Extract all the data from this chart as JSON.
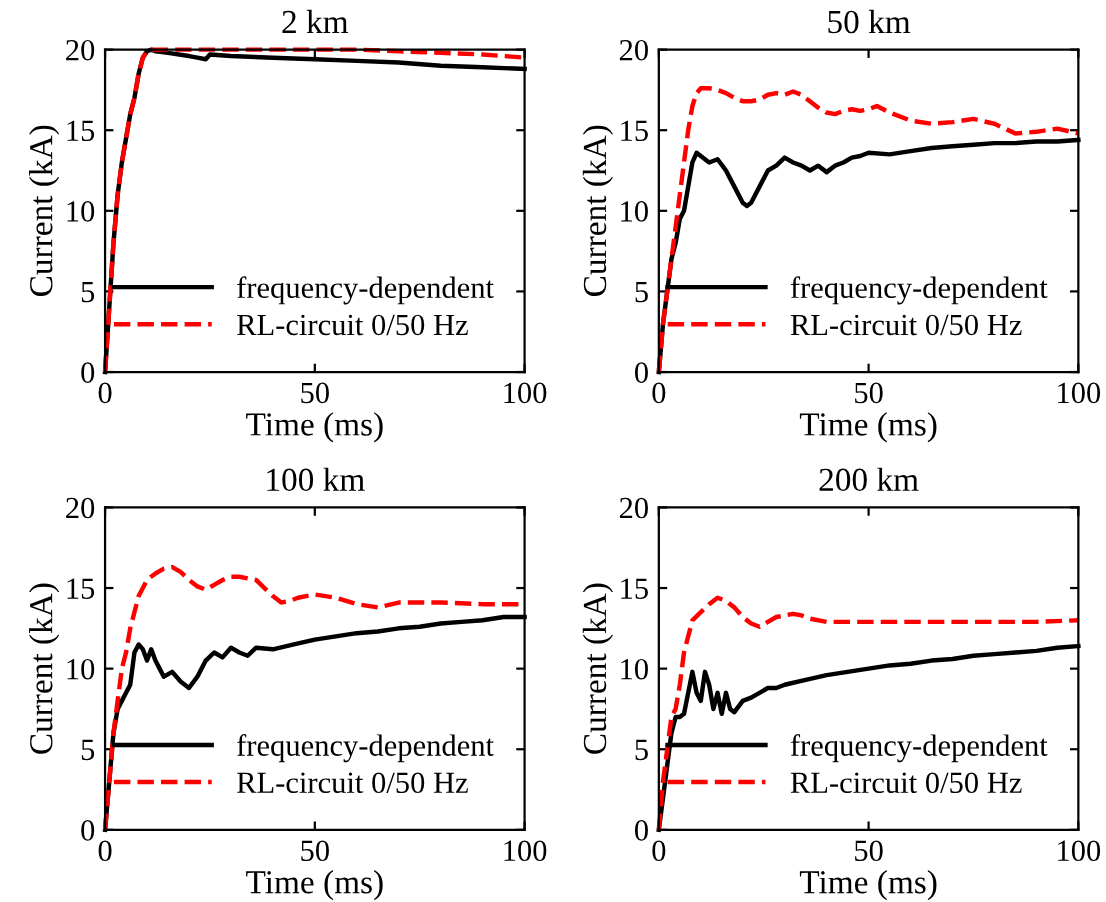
{
  "chart_data": [
    {
      "type": "line",
      "title": "2 km",
      "xlabel": "Time (ms)",
      "ylabel": "Current (kA)",
      "xlim": [
        0,
        100
      ],
      "ylim": [
        0,
        20
      ],
      "xticks": [
        0,
        50,
        100
      ],
      "yticks": [
        0,
        5,
        10,
        15,
        20
      ],
      "grid": false,
      "legend": "bottom right",
      "series": [
        {
          "name": "frequency-dependent",
          "color": "#000000",
          "line_style": "solid",
          "x": [
            0,
            1,
            2,
            3,
            4,
            5,
            6,
            7,
            8,
            9,
            10,
            11,
            12,
            15,
            20,
            22,
            24,
            25,
            30,
            40,
            50,
            60,
            70,
            80,
            90,
            100
          ],
          "values": [
            0,
            4,
            8,
            11,
            13,
            14.5,
            16,
            17,
            18.5,
            19.5,
            19.9,
            20,
            19.9,
            19.8,
            19.6,
            19.5,
            19.4,
            19.7,
            19.6,
            19.5,
            19.4,
            19.3,
            19.2,
            19.0,
            18.9,
            18.8
          ]
        },
        {
          "name": "RL-circuit 0/50 Hz",
          "color": "#ff0000",
          "line_style": "dashed",
          "x": [
            0,
            1,
            2,
            3,
            4,
            5,
            6,
            7,
            8,
            9,
            10,
            11,
            12,
            15,
            20,
            30,
            40,
            50,
            60,
            70,
            80,
            90,
            100
          ],
          "values": [
            0,
            4,
            8,
            11,
            13,
            14.5,
            16,
            17,
            18.5,
            19.5,
            19.9,
            20,
            20,
            20,
            20,
            20,
            20,
            20,
            20,
            19.9,
            19.8,
            19.7,
            19.5
          ]
        }
      ]
    },
    {
      "type": "line",
      "title": "50 km",
      "xlabel": "Time (ms)",
      "ylabel": "Current (kA)",
      "xlim": [
        0,
        100
      ],
      "ylim": [
        0,
        20
      ],
      "xticks": [
        0,
        50,
        100
      ],
      "yticks": [
        0,
        5,
        10,
        15,
        20
      ],
      "grid": false,
      "legend": "bottom right",
      "series": [
        {
          "name": "frequency-dependent",
          "color": "#000000",
          "line_style": "solid",
          "x": [
            0,
            1,
            2,
            3,
            4,
            5,
            6,
            7,
            8,
            9,
            10,
            12,
            14,
            16,
            18,
            20,
            21,
            22,
            24,
            26,
            28,
            30,
            32,
            34,
            36,
            38,
            40,
            42,
            44,
            46,
            48,
            50,
            55,
            60,
            65,
            70,
            75,
            80,
            85,
            90,
            95,
            100
          ],
          "values": [
            0,
            3,
            5,
            7,
            8,
            9.5,
            10,
            11.5,
            13,
            13.6,
            13.4,
            13,
            13.2,
            12.5,
            11.5,
            10.5,
            10.3,
            10.5,
            11.5,
            12.5,
            12.8,
            13.3,
            13,
            12.8,
            12.5,
            12.8,
            12.4,
            12.8,
            13,
            13.3,
            13.4,
            13.6,
            13.5,
            13.7,
            13.9,
            14,
            14.1,
            14.2,
            14.2,
            14.3,
            14.3,
            14.4
          ]
        },
        {
          "name": "RL-circuit 0/50 Hz",
          "color": "#ff0000",
          "line_style": "dashed",
          "x": [
            0,
            1,
            2,
            3,
            4,
            5,
            6,
            7,
            8,
            9,
            10,
            12,
            14,
            16,
            18,
            20,
            22,
            24,
            26,
            28,
            30,
            32,
            34,
            36,
            38,
            40,
            42,
            44,
            46,
            48,
            50,
            52,
            55,
            60,
            65,
            70,
            75,
            80,
            85,
            90,
            95,
            100
          ],
          "values": [
            0,
            3,
            5,
            7,
            9,
            11,
            13,
            15,
            16.5,
            17.3,
            17.6,
            17.6,
            17.5,
            17.3,
            17,
            16.8,
            16.8,
            16.9,
            17.2,
            17.3,
            17.2,
            17.4,
            17.2,
            16.8,
            16.4,
            16.1,
            16.0,
            16.2,
            16.3,
            16.2,
            16.3,
            16.5,
            16.1,
            15.6,
            15.4,
            15.5,
            15.7,
            15.4,
            14.8,
            14.9,
            15.1,
            14.8
          ]
        }
      ]
    },
    {
      "type": "line",
      "title": "100 km",
      "xlabel": "Time (ms)",
      "ylabel": "Current (kA)",
      "xlim": [
        0,
        100
      ],
      "ylim": [
        0,
        20
      ],
      "xticks": [
        0,
        50,
        100
      ],
      "yticks": [
        0,
        5,
        10,
        15,
        20
      ],
      "grid": false,
      "legend": "bottom right",
      "series": [
        {
          "name": "frequency-dependent",
          "color": "#000000",
          "line_style": "solid",
          "x": [
            0,
            1,
            2,
            3,
            4,
            5,
            6,
            7,
            8,
            9,
            10,
            11,
            12,
            13,
            14,
            16,
            18,
            20,
            22,
            24,
            26,
            28,
            30,
            32,
            34,
            36,
            40,
            45,
            50,
            55,
            60,
            65,
            70,
            75,
            80,
            85,
            90,
            95,
            100
          ],
          "values": [
            0,
            3,
            6,
            7.5,
            8,
            8.5,
            9,
            11,
            11.5,
            11.2,
            10.5,
            11.2,
            10.5,
            10,
            9.5,
            9.8,
            9.2,
            8.8,
            9.5,
            10.5,
            11,
            10.7,
            11.3,
            11,
            10.8,
            11.3,
            11.2,
            11.5,
            11.8,
            12,
            12.2,
            12.3,
            12.5,
            12.6,
            12.8,
            12.9,
            13,
            13.2,
            13.2
          ]
        },
        {
          "name": "RL-circuit 0/50 Hz",
          "color": "#ff0000",
          "line_style": "dashed",
          "x": [
            0,
            1,
            2,
            3,
            4,
            5,
            6,
            8,
            10,
            12,
            14,
            16,
            18,
            20,
            22,
            24,
            26,
            28,
            30,
            32,
            34,
            36,
            38,
            40,
            42,
            44,
            46,
            50,
            55,
            60,
            65,
            70,
            80,
            90,
            100
          ],
          "values": [
            0,
            3,
            6,
            8,
            10,
            11,
            12.5,
            14.5,
            15.5,
            15.9,
            16.2,
            16.3,
            16,
            15.5,
            15.1,
            14.9,
            15.2,
            15.5,
            15.7,
            15.7,
            15.6,
            15.5,
            15,
            14.5,
            14.1,
            14.2,
            14.4,
            14.6,
            14.4,
            14,
            13.8,
            14.1,
            14.1,
            14.0,
            14.0
          ]
        }
      ]
    },
    {
      "type": "line",
      "title": "200 km",
      "xlabel": "Time (ms)",
      "ylabel": "Current (kA)",
      "xlim": [
        0,
        100
      ],
      "ylim": [
        0,
        20
      ],
      "xticks": [
        0,
        50,
        100
      ],
      "yticks": [
        0,
        5,
        10,
        15,
        20
      ],
      "grid": false,
      "legend": "bottom right",
      "series": [
        {
          "name": "frequency-dependent",
          "color": "#000000",
          "line_style": "solid",
          "x": [
            0,
            1,
            2,
            3,
            4,
            5,
            6,
            7,
            8,
            9,
            10,
            11,
            12,
            13,
            14,
            15,
            16,
            17,
            18,
            20,
            22,
            24,
            26,
            28,
            30,
            35,
            40,
            45,
            50,
            55,
            60,
            65,
            70,
            75,
            80,
            85,
            90,
            95,
            100
          ],
          "values": [
            0,
            2,
            4,
            6,
            7,
            7,
            7.2,
            8.5,
            9.8,
            8.5,
            8,
            9.8,
            9,
            7.5,
            8.5,
            7.2,
            8.5,
            7.5,
            7.3,
            8,
            8.2,
            8.5,
            8.8,
            8.8,
            9,
            9.3,
            9.6,
            9.8,
            10,
            10.2,
            10.3,
            10.5,
            10.6,
            10.8,
            10.9,
            11,
            11.1,
            11.3,
            11.4
          ]
        },
        {
          "name": "RL-circuit 0/50 Hz",
          "color": "#ff0000",
          "line_style": "dashed",
          "x": [
            0,
            1,
            2,
            3,
            4,
            5,
            6,
            8,
            10,
            12,
            14,
            16,
            18,
            20,
            22,
            24,
            26,
            28,
            30,
            32,
            34,
            36,
            40,
            50,
            60,
            70,
            80,
            90,
            100
          ],
          "values": [
            0,
            3,
            5,
            7,
            7.5,
            9,
            11,
            13,
            13.5,
            14,
            14.4,
            14.2,
            13.8,
            13.2,
            12.8,
            12.6,
            12.9,
            13.2,
            13.3,
            13.4,
            13.3,
            13.1,
            12.9,
            12.9,
            12.9,
            12.9,
            12.9,
            12.9,
            13.0
          ]
        }
      ]
    }
  ]
}
